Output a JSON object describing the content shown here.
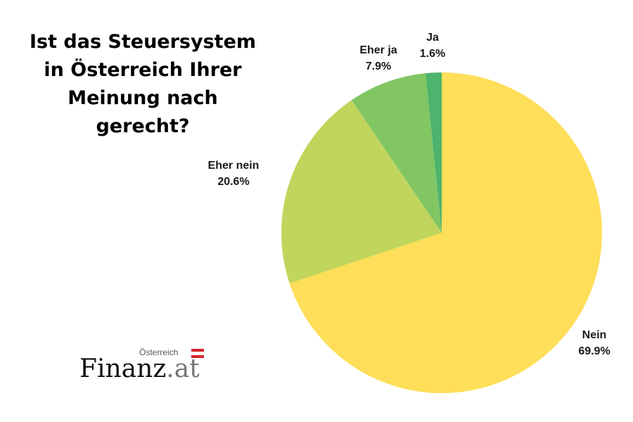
{
  "title_lines": [
    "Ist das Steuersystem",
    "in Österreich Ihrer",
    "Meinung nach",
    "gerecht?"
  ],
  "chart_data": {
    "type": "pie",
    "title": "Ist das Steuersystem in Österreich Ihrer Meinung nach gerecht?",
    "slices": [
      {
        "label": "Nein",
        "value": 69.9,
        "display": "69.9%",
        "color": "#FFDE59"
      },
      {
        "label": "Eher nein",
        "value": 20.6,
        "display": "20.6%",
        "color": "#C1D55D"
      },
      {
        "label": "Eher ja",
        "value": 7.9,
        "display": "7.9%",
        "color": "#82C664"
      },
      {
        "label": "Ja",
        "value": 1.6,
        "display": "1.6%",
        "color": "#4CB46D"
      }
    ]
  },
  "logo": {
    "country": "Österreich",
    "name": "Finanz",
    "tld": ".at",
    "flag_colors": [
      "#D9252F",
      "#FFFFFF",
      "#D9252F"
    ]
  }
}
